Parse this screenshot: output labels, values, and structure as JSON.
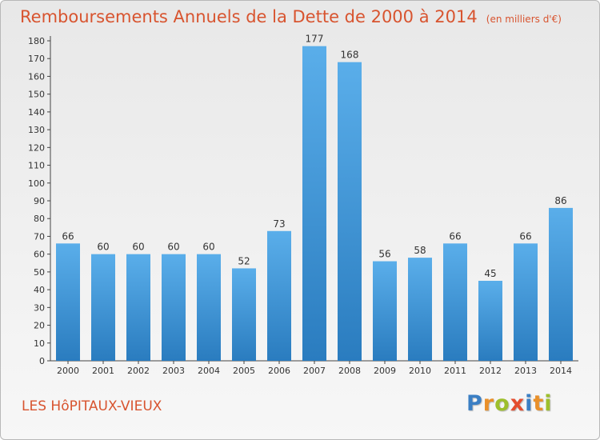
{
  "chart_data": {
    "type": "bar",
    "title": "Remboursements Annuels de la Dette de 2000 à 2014",
    "subtitle": "(en milliers d'€)",
    "categories": [
      "2000",
      "2001",
      "2002",
      "2003",
      "2004",
      "2005",
      "2006",
      "2007",
      "2008",
      "2009",
      "2010",
      "2011",
      "2012",
      "2013",
      "2014"
    ],
    "values": [
      66,
      60,
      60,
      60,
      60,
      52,
      73,
      177,
      168,
      56,
      58,
      66,
      45,
      66,
      86
    ],
    "ylim": [
      0,
      180
    ],
    "ytick_step": 10,
    "grid": false,
    "bar_color": "#4a9fe0"
  },
  "footer": {
    "commune": "LES HôPITAUX-VIEUX",
    "logo": [
      "P",
      "r",
      "o",
      "x",
      "i",
      "t",
      "i"
    ]
  },
  "colors": {
    "title": "#d8542f",
    "axis": "#333333"
  }
}
